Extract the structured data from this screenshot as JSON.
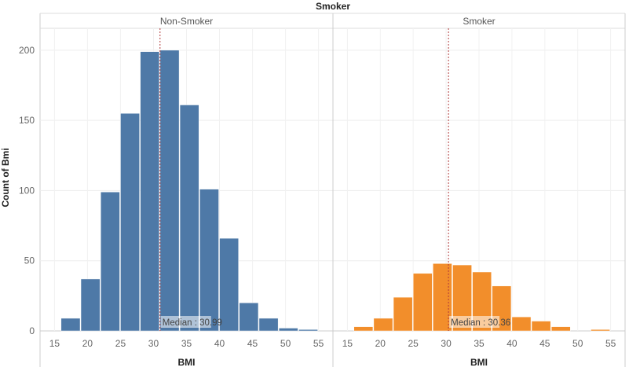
{
  "chart_data": {
    "type": "bar",
    "title": "Smoker",
    "ylabel": "Count of Bmi",
    "xlabel": "BMI",
    "x_ticks": [
      15,
      20,
      25,
      30,
      35,
      40,
      45,
      50,
      55
    ],
    "y_ticks": [
      0,
      50,
      100,
      150,
      200
    ],
    "xlim": [
      14,
      56
    ],
    "ylim": [
      0,
      210
    ],
    "bin_width": 3,
    "grid": true,
    "panels": [
      {
        "name": "Non-Smoker",
        "color": "#4e79a7",
        "bins": [
          {
            "x0": 16,
            "count": 9
          },
          {
            "x0": 19,
            "count": 37
          },
          {
            "x0": 22,
            "count": 99
          },
          {
            "x0": 25,
            "count": 155
          },
          {
            "x0": 28,
            "count": 199
          },
          {
            "x0": 31,
            "count": 200
          },
          {
            "x0": 34,
            "count": 161
          },
          {
            "x0": 37,
            "count": 101
          },
          {
            "x0": 40,
            "count": 66
          },
          {
            "x0": 43,
            "count": 20
          },
          {
            "x0": 46,
            "count": 9
          },
          {
            "x0": 49,
            "count": 2
          },
          {
            "x0": 52,
            "count": 1
          }
        ],
        "median": 30.99,
        "median_label": "Median : 30.99"
      },
      {
        "name": "Smoker",
        "color": "#f28e2b",
        "bins": [
          {
            "x0": 16,
            "count": 3
          },
          {
            "x0": 19,
            "count": 9
          },
          {
            "x0": 22,
            "count": 24
          },
          {
            "x0": 25,
            "count": 41
          },
          {
            "x0": 28,
            "count": 48
          },
          {
            "x0": 31,
            "count": 47
          },
          {
            "x0": 34,
            "count": 42
          },
          {
            "x0": 37,
            "count": 32
          },
          {
            "x0": 40,
            "count": 10
          },
          {
            "x0": 43,
            "count": 7
          },
          {
            "x0": 46,
            "count": 3
          },
          {
            "x0": 52,
            "count": 1
          }
        ],
        "median": 30.36,
        "median_label": "Median : 30.36"
      }
    ]
  }
}
